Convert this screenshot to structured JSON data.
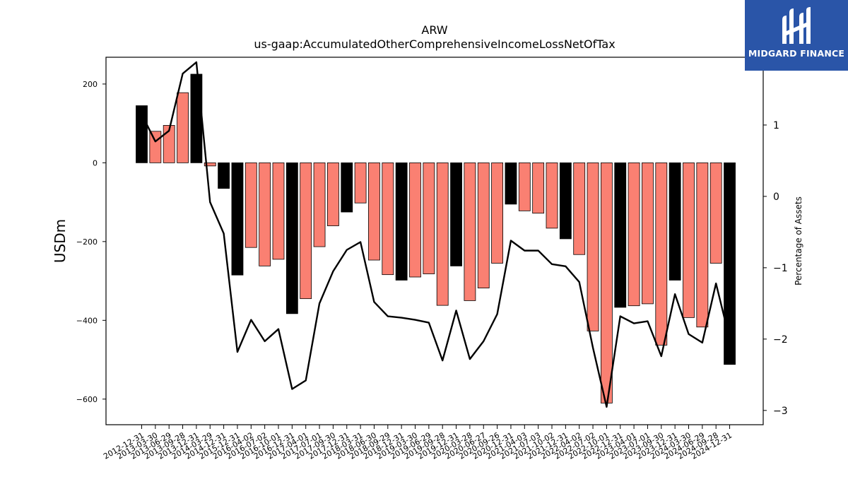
{
  "chart_data": {
    "type": "bar",
    "title": "ARW",
    "subtitle": "us-gaap:AccumulatedOtherComprehensiveIncomeLossNetOfTax",
    "ylabel": "USDm",
    "y2label": "Percentage of Assets",
    "ylim": [
      -665,
      268
    ],
    "y2lim": [
      -3.2,
      1.95
    ],
    "yticks": [
      200,
      0,
      -200,
      -400,
      -600
    ],
    "y2ticks": [
      1,
      0,
      -1,
      -2,
      -3
    ],
    "colors": {
      "up": "#fa8072",
      "down": "#000000",
      "line": "#000000"
    },
    "categories": [
      "2012-12-31",
      "2013-03-30",
      "2013-06-29",
      "2013-09-28",
      "2013-12-31",
      "2014-03-29",
      "2014-12-31",
      "2015-12-31",
      "2016-04-02",
      "2016-07-02",
      "2016-10-01",
      "2016-12-31",
      "2017-04-01",
      "2017-07-01",
      "2017-09-30",
      "2017-12-31",
      "2018-03-31",
      "2018-06-30",
      "2018-09-29",
      "2018-12-31",
      "2019-03-30",
      "2019-06-29",
      "2019-09-28",
      "2019-12-31",
      "2020-03-28",
      "2020-06-27",
      "2020-09-26",
      "2020-12-31",
      "2021-04-03",
      "2021-07-03",
      "2021-10-02",
      "2021-12-31",
      "2022-04-02",
      "2022-07-02",
      "2022-10-01",
      "2022-12-31",
      "2023-04-01",
      "2023-07-01",
      "2023-09-30",
      "2023-12-31",
      "2024-03-30",
      "2024-06-29",
      "2024-09-28",
      "2024-12-31"
    ],
    "series": [
      {
        "values": [
          145,
          80,
          95,
          178,
          225,
          -8,
          -65,
          -285,
          -215,
          -262,
          -245,
          -383,
          -345,
          -213,
          -160,
          -125,
          -102,
          -247,
          -284,
          -298,
          -290,
          -282,
          -362,
          -262,
          -350,
          -318,
          -255,
          -105,
          -122,
          -128,
          -166,
          -193,
          -233,
          -427,
          -610,
          -367,
          -363,
          -358,
          -463,
          -298,
          -393,
          -417,
          -255,
          -512
        ],
        "direction": [
          "down",
          "up",
          "up",
          "up",
          "down",
          "up",
          "down",
          "down",
          "up",
          "up",
          "up",
          "down",
          "up",
          "up",
          "up",
          "down",
          "up",
          "up",
          "up",
          "down",
          "up",
          "up",
          "up",
          "down",
          "up",
          "up",
          "up",
          "down",
          "up",
          "up",
          "up",
          "down",
          "up",
          "up",
          "up",
          "down",
          "up",
          "up",
          "up",
          "down",
          "up",
          "up",
          "up",
          "down"
        ]
      },
      {
        "name": "Percentage of Assets",
        "values": [
          1.15,
          0.77,
          0.92,
          1.72,
          1.88,
          -0.08,
          -0.52,
          -2.18,
          -1.73,
          -2.03,
          -1.86,
          -2.7,
          -2.58,
          -1.5,
          -1.05,
          -0.75,
          -0.64,
          -1.48,
          -1.68,
          -1.7,
          -1.73,
          -1.77,
          -2.3,
          -1.6,
          -2.28,
          -2.03,
          -1.65,
          -0.62,
          -0.76,
          -0.76,
          -0.95,
          -0.98,
          -1.2,
          -2.12,
          -2.95,
          -1.68,
          -1.78,
          -1.75,
          -2.24,
          -1.37,
          -1.93,
          -2.05,
          -1.22,
          -2.0
        ]
      }
    ]
  },
  "logo": {
    "text": "MIDGARD FINANCE"
  }
}
